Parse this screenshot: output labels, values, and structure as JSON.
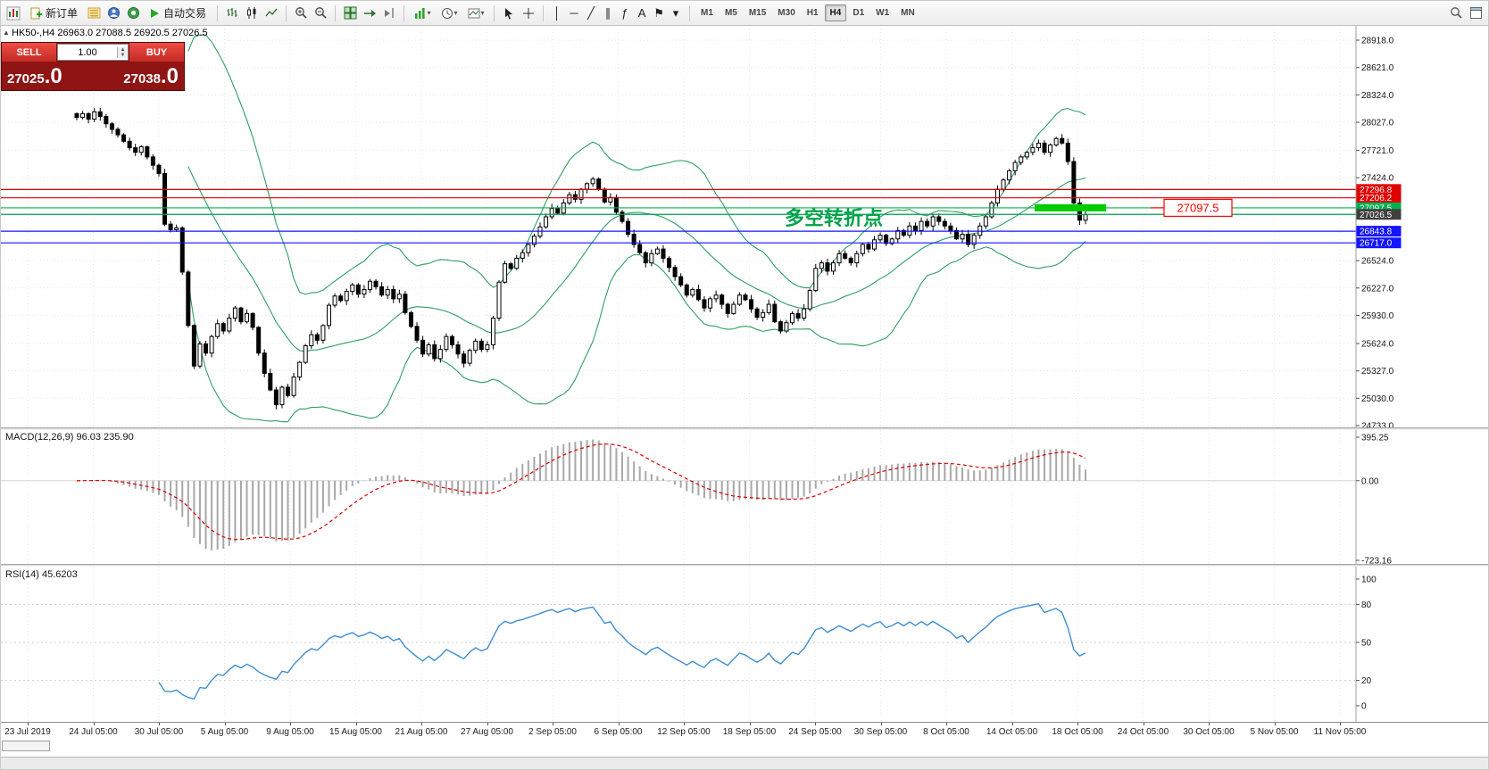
{
  "toolbar": {
    "new_order_label": "新订单",
    "auto_trading_label": "自动交易",
    "draw_tools": [
      {
        "name": "vertical-line-icon",
        "glyph": "│"
      },
      {
        "name": "horizontal-line-icon",
        "glyph": "─"
      },
      {
        "name": "trendline-icon",
        "glyph": "╱"
      },
      {
        "name": "equidistant-channel-icon",
        "glyph": "∥"
      },
      {
        "name": "fibonacci-icon",
        "glyph": "ƒ"
      },
      {
        "name": "text-tool-icon",
        "glyph": "A"
      },
      {
        "name": "arrow-label-icon",
        "glyph": "⚑"
      },
      {
        "name": "shapes-dropdown-icon",
        "glyph": "▾"
      }
    ],
    "timeframes": [
      {
        "label": "M1",
        "active": false
      },
      {
        "label": "M5",
        "active": false
      },
      {
        "label": "M15",
        "active": false
      },
      {
        "label": "M30",
        "active": false
      },
      {
        "label": "H1",
        "active": false
      },
      {
        "label": "H4",
        "active": true
      },
      {
        "label": "D1",
        "active": false
      },
      {
        "label": "W1",
        "active": false
      },
      {
        "label": "MN",
        "active": false
      }
    ]
  },
  "chart_header": {
    "symbol_period": "HK50-,H4",
    "open": "26963.0",
    "high": "27088.5",
    "low": "26920.5",
    "close": "27026.5"
  },
  "trade_panel": {
    "sell_label": "SELL",
    "buy_label": "BUY",
    "volume": "1.00",
    "sell_price_main": "27025",
    "sell_price_pips": ".0",
    "buy_price_main": "27038",
    "buy_price_pips": ".0"
  },
  "main_pane": {
    "price_axis_labels": [
      "28918.0",
      "28621.0",
      "28324.0",
      "28027.0",
      "27721.0",
      "27424.0",
      "26524.0",
      "26227.0",
      "25930.0",
      "25624.0",
      "25327.0",
      "25030.0",
      "24733.0"
    ],
    "levels": [
      {
        "label": "27296.8",
        "price": 27296.8,
        "color": "#e00000"
      },
      {
        "label": "27206.2",
        "price": 27206.2,
        "color": "#e00000"
      },
      {
        "label": "27097.5",
        "price": 27097.5,
        "color": "#00b050"
      },
      {
        "label": "26843.8",
        "price": 26843.8,
        "color": "#1414ff"
      },
      {
        "label": "26717.0",
        "price": 26717.0,
        "color": "#1414ff"
      }
    ],
    "current_price": {
      "label": "27026.5",
      "price": 27026.5,
      "line_color": "#00a24a",
      "tag_bg": "#3f3f3f"
    },
    "annotation": {
      "text": "多空转折点",
      "color": "#00a24a"
    },
    "callout": {
      "text": "27097.5",
      "color": "#ff0000"
    },
    "highlight": {
      "price": 27097.5,
      "color": "#00cc00"
    }
  },
  "macd": {
    "name": "MACD(12,26,9)",
    "value_main": "96.03",
    "value_signal": "235.90",
    "axis_labels": [
      "395.25",
      "0.00",
      "-723.16"
    ],
    "max": 395.25,
    "min": -723.16
  },
  "rsi": {
    "name": "RSI(14)",
    "value": "45.6203",
    "axis_labels": [
      "100",
      "80",
      "50",
      "20",
      "0"
    ]
  },
  "time_axis": [
    "23 Jul 2019",
    "24 Jul 05:00",
    "30 Jul 05:00",
    "5 Aug 05:00",
    "9 Aug 05:00",
    "15 Aug 05:00",
    "21 Aug 05:00",
    "27 Aug 05:00",
    "2 Sep 05:00",
    "6 Sep 05:00",
    "12 Sep 05:00",
    "18 Sep 05:00",
    "24 Sep 05:00",
    "30 Sep 05:00",
    "8 Oct 05:00",
    "14 Oct 05:00",
    "18 Oct 05:00",
    "24 Oct 05:00",
    "30 Oct 05:00",
    "5 Nov 05:00",
    "11 Nov 05:00"
  ],
  "colors": {
    "bollinger": "#2f9e63",
    "macd_hist": "#a8a8a8",
    "macd_signal": "#e00000",
    "rsi": "#3e8ed0",
    "grid": "#e6e6e6",
    "candle_up": "#ffffff",
    "candle_down": "#000000",
    "candle_border": "#000000"
  },
  "chart_data": {
    "type": "candlestick",
    "symbol": "HK50-",
    "period": "H4",
    "price_range": {
      "min": 24733.0,
      "max": 28918.0
    },
    "indicators": [
      "Bollinger Bands(20,2)",
      "MACD(12,26,9)",
      "RSI(14)"
    ],
    "last_candle": {
      "o": 26963.0,
      "h": 27088.5,
      "l": 26920.5,
      "c": 27026.5
    },
    "closes": [
      28080,
      28120,
      28060,
      28140,
      28090,
      28010,
      27950,
      27890,
      27820,
      27750,
      27700,
      27760,
      27650,
      27560,
      27470,
      26920,
      26860,
      26880,
      26400,
      25820,
      25380,
      25620,
      25520,
      25700,
      25840,
      25760,
      25900,
      26010,
      25860,
      25950,
      25800,
      25520,
      25300,
      25120,
      24960,
      25150,
      25060,
      25260,
      25420,
      25600,
      25720,
      25660,
      25820,
      26040,
      26140,
      26090,
      26190,
      26260,
      26160,
      26210,
      26300,
      26240,
      26150,
      26210,
      26110,
      26160,
      25960,
      25810,
      25660,
      25510,
      25610,
      25460,
      25560,
      25700,
      25610,
      25510,
      25410,
      25550,
      25650,
      25560,
      25610,
      25900,
      26290,
      26490,
      26440,
      26550,
      26610,
      26700,
      26790,
      26890,
      27000,
      27090,
      27040,
      27150,
      27240,
      27190,
      27300,
      27360,
      27410,
      27300,
      27160,
      27210,
      27050,
      26950,
      26810,
      26700,
      26610,
      26500,
      26600,
      26650,
      26550,
      26450,
      26350,
      26260,
      26150,
      26210,
      26100,
      26010,
      26110,
      26150,
      26050,
      25950,
      26050,
      26150,
      26100,
      26000,
      25910,
      25960,
      26050,
      25860,
      25760,
      25850,
      25950,
      25900,
      26000,
      26200,
      26440,
      26500,
      26410,
      26500,
      26600,
      26550,
      26500,
      26600,
      26700,
      26650,
      26750,
      26800,
      26710,
      26760,
      26850,
      26800,
      26900,
      26850,
      26950,
      26900,
      27000,
      26950,
      26900,
      26850,
      26760,
      26810,
      26700,
      26800,
      26900,
      27000,
      27150,
      27300,
      27400,
      27500,
      27590,
      27650,
      27700,
      27750,
      27800,
      27700,
      27780,
      27850,
      27800,
      27600,
      27150,
      26963,
      27026.5
    ]
  }
}
